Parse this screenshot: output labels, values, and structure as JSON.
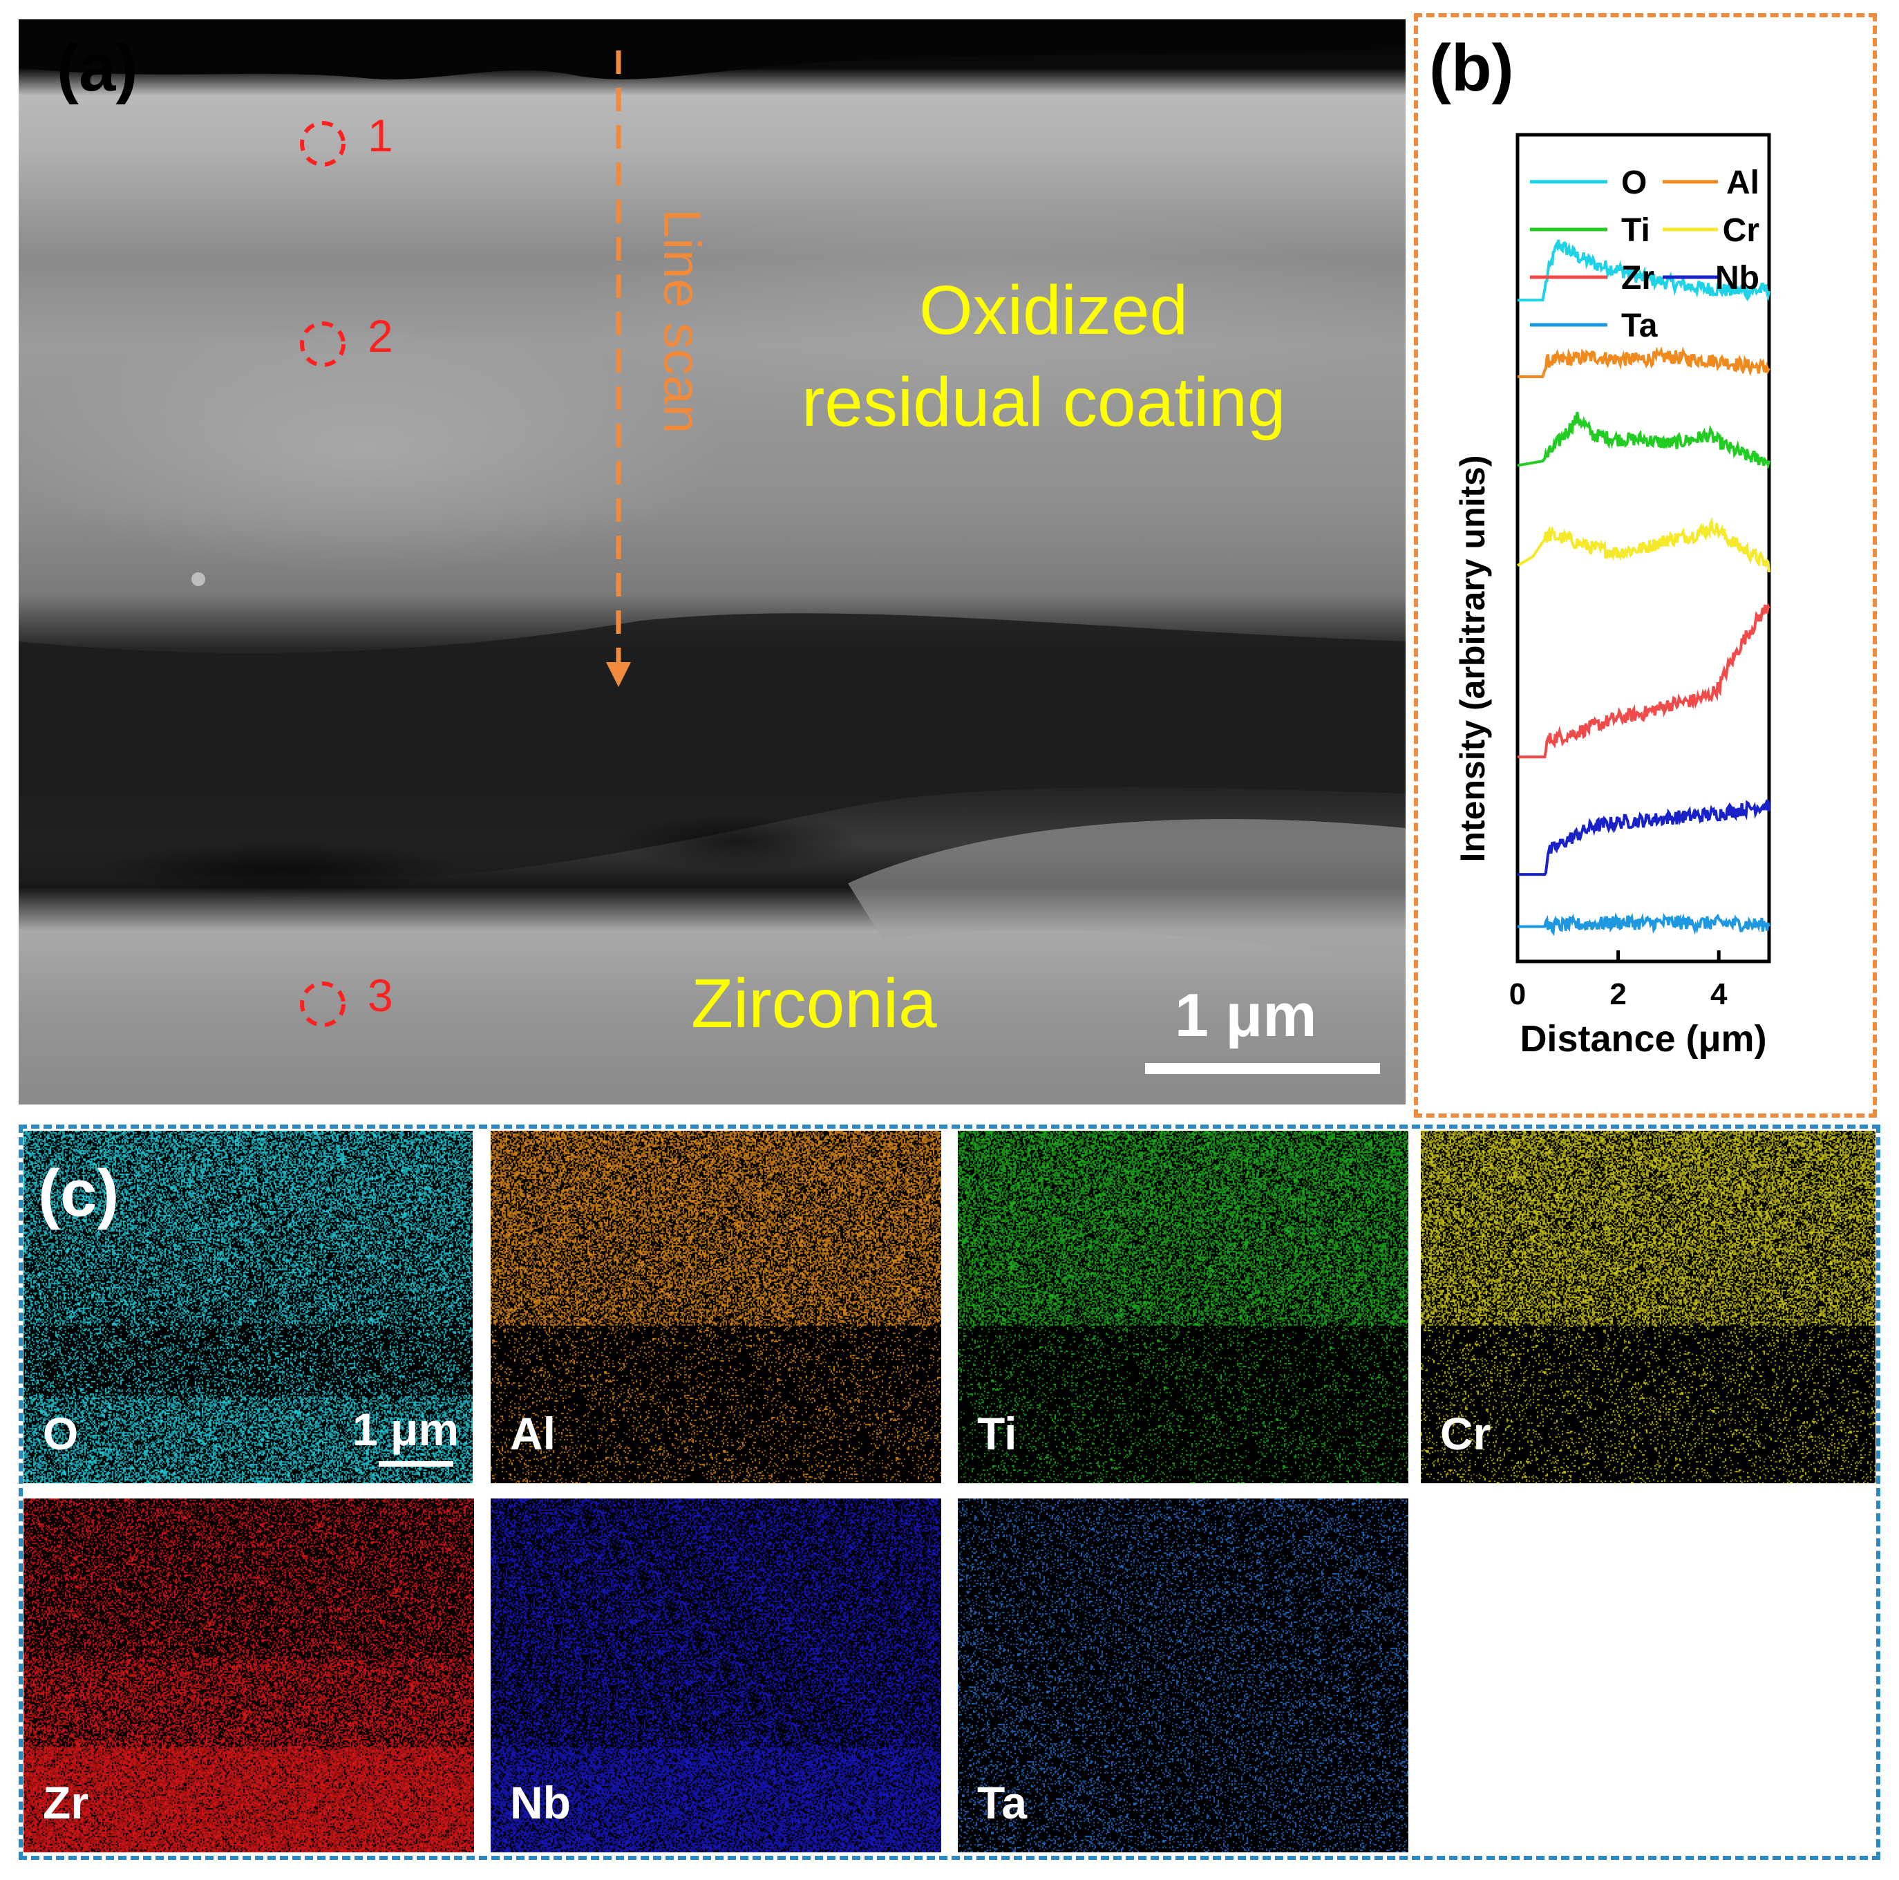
{
  "panel_a": {
    "letter": "(a)",
    "points": [
      {
        "label": "1"
      },
      {
        "label": "2"
      },
      {
        "label": "3"
      }
    ],
    "line_scan_label": "Line scan",
    "region_top_line1": "Oxidized",
    "region_top_line2": "residual coating",
    "region_bottom": "Zirconia",
    "scale_bar": "1 μm",
    "colors": {
      "annotation": "#ffff00",
      "points": "#ff2020",
      "line_scan": "#f08a3c"
    }
  },
  "panel_b": {
    "letter": "(b)"
  },
  "chart_data": {
    "type": "line",
    "xlabel": "Distance (μm)",
    "ylabel": "Intensity (arbitrary units)",
    "xlim": [
      0,
      5
    ],
    "xticks": [
      "0",
      "2",
      "4"
    ],
    "legend_position": "top",
    "y_ticks_shown": false,
    "series": [
      {
        "name": "O",
        "color": "#1fd3e6",
        "x": [
          0,
          0.5,
          0.6,
          0.8,
          1.2,
          1.6,
          2.0,
          2.5,
          3.0,
          3.5,
          4.0,
          4.5,
          5.0
        ],
        "y": [
          7.6,
          7.6,
          7.9,
          8.25,
          8.1,
          8.0,
          7.95,
          7.85,
          7.8,
          7.75,
          7.72,
          7.7,
          7.72
        ]
      },
      {
        "name": "Al",
        "color": "#f08a1e",
        "x": [
          0,
          0.5,
          0.6,
          1.0,
          1.5,
          2.0,
          2.5,
          3.0,
          3.5,
          4.0,
          4.5,
          5.0
        ],
        "y": [
          6.72,
          6.72,
          6.9,
          6.92,
          6.95,
          6.92,
          6.92,
          6.95,
          6.92,
          6.9,
          6.85,
          6.82
        ]
      },
      {
        "name": "Ti",
        "color": "#22cc22",
        "x": [
          0,
          0.5,
          1.0,
          1.2,
          1.5,
          2.0,
          2.5,
          3.0,
          3.5,
          3.8,
          4.2,
          4.6,
          5.0
        ],
        "y": [
          5.7,
          5.75,
          6.1,
          6.25,
          6.05,
          6.0,
          6.0,
          5.95,
          6.0,
          6.05,
          5.9,
          5.8,
          5.75
        ]
      },
      {
        "name": "Cr",
        "color": "#f5e92a",
        "x": [
          0,
          0.3,
          0.6,
          1.0,
          1.5,
          2.0,
          2.5,
          3.0,
          3.5,
          3.9,
          4.2,
          4.6,
          5.0
        ],
        "y": [
          4.55,
          4.65,
          4.9,
          4.85,
          4.75,
          4.7,
          4.75,
          4.85,
          4.9,
          5.0,
          4.85,
          4.7,
          4.55
        ]
      },
      {
        "name": "Zr",
        "color": "#f04a4a",
        "x": [
          0,
          0.55,
          0.6,
          1.0,
          1.5,
          2.0,
          2.5,
          3.0,
          3.5,
          3.8,
          4.0,
          4.2,
          4.5,
          4.8,
          5.0
        ],
        "y": [
          2.35,
          2.35,
          2.55,
          2.6,
          2.7,
          2.8,
          2.85,
          2.95,
          3.0,
          3.05,
          3.15,
          3.4,
          3.7,
          3.95,
          4.1
        ]
      },
      {
        "name": "Nb",
        "color": "#1822c8",
        "x": [
          0,
          0.55,
          0.6,
          1.0,
          1.5,
          2.0,
          2.5,
          3.0,
          3.5,
          4.0,
          4.5,
          5.0
        ],
        "y": [
          1.0,
          1.0,
          1.25,
          1.4,
          1.55,
          1.6,
          1.62,
          1.65,
          1.67,
          1.7,
          1.75,
          1.8
        ]
      },
      {
        "name": "Ta",
        "color": "#1e98e0",
        "x": [
          0,
          0.5,
          1.0,
          1.5,
          2.0,
          2.5,
          3.0,
          3.5,
          4.0,
          4.5,
          5.0
        ],
        "y": [
          0.4,
          0.4,
          0.42,
          0.43,
          0.45,
          0.44,
          0.45,
          0.44,
          0.44,
          0.43,
          0.42
        ]
      }
    ]
  },
  "panel_c": {
    "letter": "(c)",
    "scale_bar": "1 μm",
    "maps": [
      {
        "element": "O",
        "color": "#26d4e3",
        "profile": "top_dense_bottom_dense"
      },
      {
        "element": "Al",
        "color": "#e6901c",
        "profile": "top_dense"
      },
      {
        "element": "Ti",
        "color": "#1fb81f",
        "profile": "top_dense"
      },
      {
        "element": "Cr",
        "color": "#d8d21c",
        "profile": "top_dense"
      },
      {
        "element": "Zr",
        "color": "#e41818",
        "profile": "bottom_dense"
      },
      {
        "element": "Nb",
        "color": "#1818c8",
        "profile": "bottom_dense_mild"
      },
      {
        "element": "Ta",
        "color": "#2a76d8",
        "profile": "uniform_sparse"
      }
    ]
  }
}
